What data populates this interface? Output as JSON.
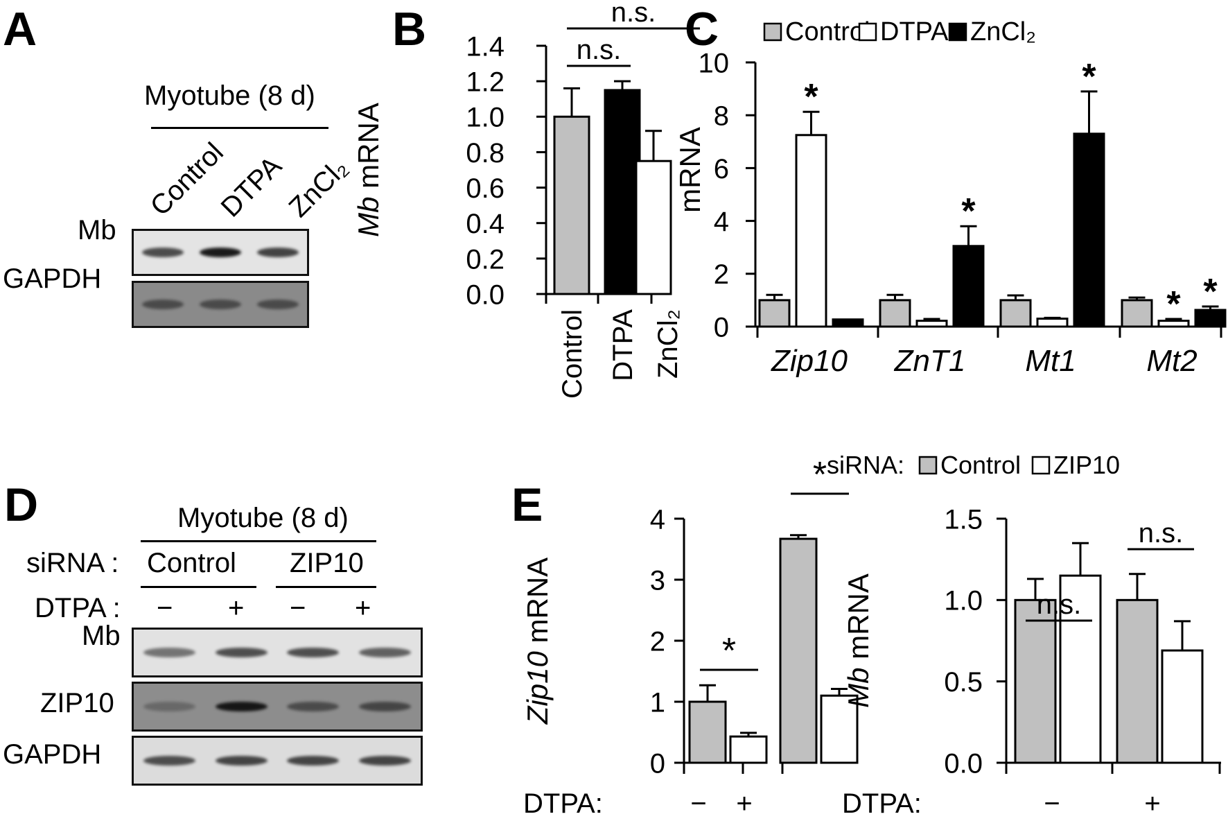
{
  "panels": {
    "A": {
      "letter": "A",
      "header": "Myotube (8 d)",
      "lanes": [
        "Control",
        "DTPA",
        "ZnCl₂"
      ],
      "rows": [
        {
          "label": "Mb",
          "background": "#e4e4e4",
          "band_color": "#1a1a1a",
          "intensity": [
            0.75,
            1.0,
            0.8
          ]
        },
        {
          "label": "GAPDH",
          "background": "#8a8a8a",
          "band_color": "#3a3a3a",
          "intensity": [
            0.8,
            0.8,
            0.8
          ]
        }
      ]
    },
    "B": {
      "letter": "B"
    },
    "C": {
      "letter": "C"
    },
    "D": {
      "letter": "D",
      "header": "Myotube (8 d)",
      "sirna_label": "siRNA :",
      "sirna_groups": [
        "Control",
        "ZIP10"
      ],
      "dtpa_label": "DTPA :",
      "dtpa_signs": [
        "−",
        "+",
        "−",
        "+"
      ],
      "rows": [
        {
          "label": "Mb",
          "background": "#e2e2e2",
          "band_color": "#2a2a2a",
          "intensity": [
            0.6,
            0.8,
            0.8,
            0.7
          ]
        },
        {
          "label": "ZIP10",
          "background": "#8d8d8d",
          "band_color": "#151515",
          "intensity": [
            0.3,
            1.0,
            0.55,
            0.6
          ]
        },
        {
          "label": "GAPDH",
          "background": "#dcdcdc",
          "band_color": "#2a2a2a",
          "intensity": [
            0.8,
            0.85,
            0.85,
            0.85
          ]
        }
      ]
    },
    "E": {
      "letter": "E",
      "legend_prefix": "siRNA:",
      "legend": [
        {
          "label": "Control",
          "color": "#c0c0c0"
        },
        {
          "label": "ZIP10",
          "color": "#ffffff"
        }
      ],
      "x_label_prefix": "DTPA:",
      "x_groups": [
        "−",
        "+"
      ]
    }
  },
  "chart_data": [
    {
      "panel": "B",
      "type": "bar",
      "title": "",
      "xlabel": "",
      "ylabel_italic": "Mb",
      "ylabel": " mRNA",
      "ylim": [
        0,
        1.4
      ],
      "yticks": [
        "0.0",
        "0.2",
        "0.4",
        "0.6",
        "0.8",
        "1.0",
        "1.2",
        "1.4"
      ],
      "categories": [
        "Control",
        "DTPA",
        "ZnCl₂"
      ],
      "values": [
        1.0,
        1.15,
        0.75
      ],
      "errors": [
        0.16,
        0.05,
        0.17
      ],
      "colors": [
        "#c0c0c0",
        "#000000",
        "#ffffff"
      ],
      "annotations": [
        {
          "text": "n.s.",
          "between": [
            "Control",
            "DTPA"
          ]
        },
        {
          "text": "n.s.",
          "between": [
            "Control",
            "ZnCl₂"
          ]
        }
      ]
    },
    {
      "panel": "C",
      "type": "bar",
      "title": "",
      "xlabel": "",
      "ylabel": "mRNA",
      "ylim": [
        0,
        10
      ],
      "yticks": [
        "0",
        "2",
        "4",
        "6",
        "8",
        "10"
      ],
      "categories": [
        "Zip10",
        "ZnT1",
        "Mt1",
        "Mt2"
      ],
      "legend_position": "top",
      "series": [
        {
          "name": "Control",
          "color": "#c0c0c0",
          "values": [
            1.0,
            1.0,
            1.0,
            1.0
          ],
          "errors": [
            0.2,
            0.2,
            0.18,
            0.1
          ],
          "sig": [
            false,
            false,
            false,
            false
          ]
        },
        {
          "name": "DTPA",
          "color": "#ffffff",
          "values": [
            7.25,
            0.22,
            0.3,
            0.22
          ],
          "errors": [
            0.88,
            0.07,
            0.03,
            0.07
          ],
          "sig": [
            true,
            false,
            false,
            true
          ]
        },
        {
          "name": "ZnCl₂",
          "color": "#000000",
          "values": [
            0.27,
            3.05,
            7.3,
            0.63
          ],
          "errors": [
            0.0,
            0.75,
            1.6,
            0.13
          ],
          "sig": [
            false,
            true,
            true,
            true
          ]
        }
      ]
    },
    {
      "panel": "E-left",
      "type": "bar",
      "ylabel_italic": "Zip10",
      "ylabel": " mRNA",
      "ylim": [
        0,
        4
      ],
      "yticks": [
        "0",
        "1",
        "2",
        "3",
        "4"
      ],
      "categories": [
        "−",
        "+"
      ],
      "xlabel": "DTPA:",
      "series": [
        {
          "name": "Control",
          "color": "#c0c0c0",
          "values": [
            1.0,
            3.67
          ],
          "errors": [
            0.27,
            0.06
          ]
        },
        {
          "name": "ZIP10",
          "color": "#ffffff",
          "values": [
            0.43,
            1.1
          ],
          "errors": [
            0.06,
            0.11
          ]
        }
      ],
      "annotations": [
        {
          "text": "*",
          "group": "−"
        },
        {
          "text": "*",
          "group": "+"
        }
      ]
    },
    {
      "panel": "E-right",
      "type": "bar",
      "ylabel_italic": "Mb",
      "ylabel": " mRNA",
      "ylim": [
        0,
        1.5
      ],
      "yticks": [
        "0.0",
        "0.5",
        "1.0",
        "1.5"
      ],
      "categories": [
        "−",
        "+"
      ],
      "xlabel": "DTPA:",
      "series": [
        {
          "name": "Control",
          "color": "#c0c0c0",
          "values": [
            1.0,
            1.0
          ],
          "errors": [
            0.13,
            0.16
          ]
        },
        {
          "name": "ZIP10",
          "color": "#ffffff",
          "values": [
            1.15,
            0.69
          ],
          "errors": [
            0.2,
            0.18
          ]
        }
      ],
      "annotations": [
        {
          "text": "n.s.",
          "group": "−"
        },
        {
          "text": "n.s.",
          "group": "+"
        }
      ]
    }
  ]
}
